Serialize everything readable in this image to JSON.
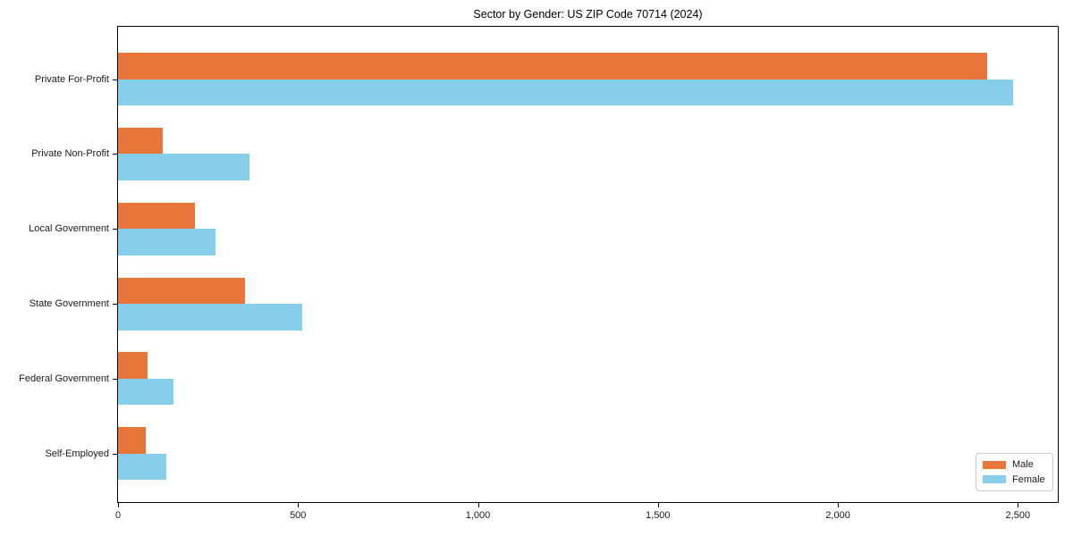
{
  "chart_data": {
    "type": "bar",
    "orientation": "horizontal",
    "title": "Sector by Gender: US ZIP Code 70714 (2024)",
    "categories": [
      "Private For-Profit",
      "Private Non-Profit",
      "Local Government",
      "State Government",
      "Federal Government",
      "Self-Employed"
    ],
    "series": [
      {
        "name": "Male",
        "color": "#e8763b",
        "values": [
          2415,
          124,
          214,
          354,
          82,
          77
        ]
      },
      {
        "name": "Female",
        "color": "#87ceeb",
        "values": [
          2487,
          364,
          272,
          511,
          153,
          134
        ]
      }
    ],
    "xlabel": "",
    "ylabel": "",
    "xlim": [
      0,
      2611
    ],
    "x_ticks": [
      0,
      500,
      1000,
      1500,
      2000,
      2500
    ],
    "x_tick_labels": [
      "0",
      "500",
      "1,000",
      "1,500",
      "2,000",
      "2,500"
    ],
    "grid": false,
    "legend_position": "lower right",
    "legend_title": "",
    "axis_color": "#000000",
    "background_color": "#ffffff"
  }
}
